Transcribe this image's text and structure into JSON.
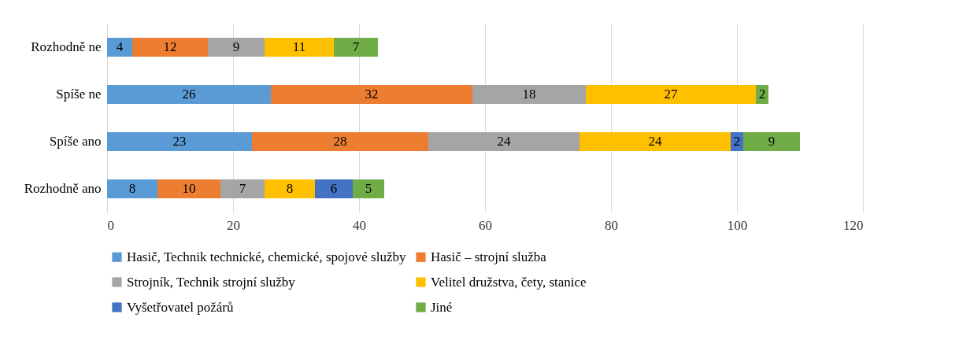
{
  "chart_data": {
    "type": "bar",
    "orientation": "horizontal",
    "stacked": true,
    "categories": [
      "Rozhodně ne",
      "Spíše ne",
      "Spíše ano",
      "Rozhodně ano"
    ],
    "series": [
      {
        "name": "Hasič, Technik technické, chemické, spojové služby",
        "color": "#5b9bd5",
        "values": [
          4,
          26,
          23,
          8
        ]
      },
      {
        "name": "Hasič – strojní služba",
        "color": "#ed7d31",
        "values": [
          12,
          32,
          28,
          10
        ]
      },
      {
        "name": "Strojník, Technik strojní služby",
        "color": "#a5a5a5",
        "values": [
          9,
          18,
          24,
          7
        ]
      },
      {
        "name": "Velitel družstva, čety, stanice",
        "color": "#ffc000",
        "values": [
          11,
          27,
          24,
          8
        ]
      },
      {
        "name": "Vyšetřovatel požárů",
        "color": "#4472c4",
        "values": [
          null,
          null,
          2,
          6
        ]
      },
      {
        "name": "Jiné",
        "color": "#70ad47",
        "values": [
          7,
          2,
          9,
          5
        ]
      }
    ],
    "xlim": [
      0,
      120
    ],
    "xticks": [
      0,
      20,
      40,
      60,
      80,
      100,
      120
    ],
    "grid": "x",
    "legend": "bottom",
    "data_labels": true
  }
}
